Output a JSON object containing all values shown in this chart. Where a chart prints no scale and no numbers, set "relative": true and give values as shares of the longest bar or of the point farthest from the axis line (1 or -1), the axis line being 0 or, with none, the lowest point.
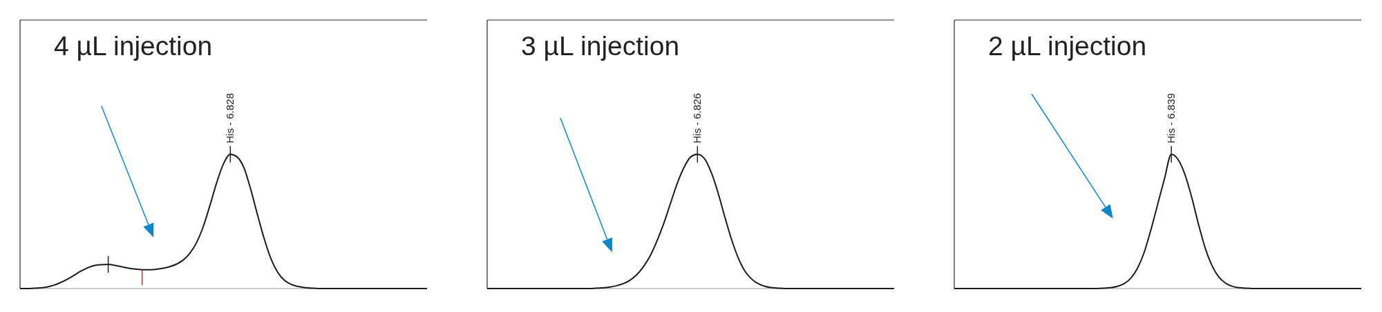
{
  "chart_data": [
    {
      "type": "line",
      "title": "4 µL injection",
      "relative": true,
      "categories": [
        null,
        null,
        null,
        null,
        null,
        null,
        null,
        null,
        null,
        null,
        null,
        null,
        null,
        null,
        null,
        null,
        null,
        null,
        null,
        null,
        null,
        null,
        null,
        null,
        null,
        null,
        null,
        null,
        null,
        null,
        null,
        null,
        null,
        null,
        null,
        null,
        null,
        null,
        null,
        null,
        null,
        null,
        null,
        null,
        null,
        null,
        null,
        null,
        null,
        null,
        null,
        null,
        null,
        null,
        null,
        null,
        null,
        null,
        null,
        null,
        null
      ],
      "series": [
        {
          "color": "#1a1a1a",
          "values": [
            0,
            0,
            0.002,
            0.005,
            0.012,
            0.025,
            0.045,
            0.07,
            0.1,
            0.13,
            0.155,
            0.172,
            0.178,
            0.18,
            0.172,
            0.162,
            0.152,
            0.145,
            0.14,
            0.14,
            0.143,
            0.15,
            0.162,
            0.18,
            0.21,
            0.26,
            0.34,
            0.46,
            0.62,
            0.79,
            0.93,
            1,
            0.98,
            0.9,
            0.74,
            0.55,
            0.37,
            0.22,
            0.12,
            0.06,
            0.03,
            0.015,
            0.007,
            0.003,
            0,
            0,
            0,
            0,
            0,
            0,
            0,
            0,
            0,
            0,
            0,
            0,
            0,
            0,
            0,
            0,
            0
          ]
        }
      ],
      "annotations": [
        {
          "text": "His - 6.828",
          "y": 1
        }
      ]
    },
    {
      "type": "line",
      "title": "3 µL injection",
      "relative": true,
      "categories": [
        null,
        null,
        null,
        null,
        null,
        null,
        null,
        null,
        null,
        null,
        null,
        null,
        null,
        null,
        null,
        null,
        null,
        null,
        null,
        null,
        null,
        null,
        null,
        null,
        null,
        null,
        null,
        null,
        null,
        null,
        null,
        null,
        null,
        null,
        null,
        null,
        null,
        null,
        null,
        null,
        null,
        null,
        null,
        null,
        null,
        null,
        null,
        null,
        null,
        null,
        null,
        null,
        null,
        null,
        null,
        null,
        null,
        null,
        null,
        null,
        null
      ],
      "series": [
        {
          "color": "#1a1a1a",
          "values": [
            0,
            0,
            0,
            0,
            0,
            0,
            0,
            0,
            0,
            0,
            0,
            0,
            0,
            0,
            0,
            0,
            0.002,
            0.005,
            0.01,
            0.02,
            0.035,
            0.06,
            0.1,
            0.16,
            0.24,
            0.35,
            0.48,
            0.63,
            0.78,
            0.9,
            0.98,
            1,
            0.97,
            0.87,
            0.72,
            0.54,
            0.37,
            0.23,
            0.13,
            0.07,
            0.035,
            0.015,
            0.006,
            0.002,
            0,
            0,
            0,
            0,
            0,
            0,
            0,
            0,
            0,
            0,
            0,
            0,
            0,
            0,
            0,
            0,
            0
          ]
        }
      ],
      "annotations": [
        {
          "text": "His - 6.826",
          "y": 1
        }
      ]
    },
    {
      "type": "line",
      "title": "2 µL injection",
      "relative": true,
      "categories": [
        null,
        null,
        null,
        null,
        null,
        null,
        null,
        null,
        null,
        null,
        null,
        null,
        null,
        null,
        null,
        null,
        null,
        null,
        null,
        null,
        null,
        null,
        null,
        null,
        null,
        null,
        null,
        null,
        null,
        null,
        null,
        null,
        null,
        null,
        null,
        null,
        null,
        null,
        null,
        null,
        null,
        null,
        null,
        null,
        null,
        null,
        null,
        null,
        null,
        null,
        null,
        null,
        null,
        null,
        null,
        null,
        null,
        null,
        null,
        null,
        null
      ],
      "series": [
        {
          "color": "#1a1a1a",
          "values": [
            0,
            0,
            0,
            0,
            0,
            0,
            0,
            0,
            0,
            0,
            0,
            0,
            0,
            0,
            0,
            0,
            0,
            0,
            0,
            0,
            0,
            0,
            0.002,
            0.006,
            0.015,
            0.035,
            0.075,
            0.15,
            0.27,
            0.44,
            0.63,
            0.82,
            1,
            0.96,
            0.85,
            0.68,
            0.48,
            0.3,
            0.17,
            0.085,
            0.04,
            0.016,
            0.006,
            0.002,
            0,
            0,
            0,
            0,
            0,
            0,
            0,
            0,
            0,
            0,
            0,
            0,
            0,
            0,
            0,
            0,
            0
          ]
        }
      ],
      "annotations": [
        {
          "text": "His - 6.839",
          "y": 1
        }
      ]
    }
  ]
}
